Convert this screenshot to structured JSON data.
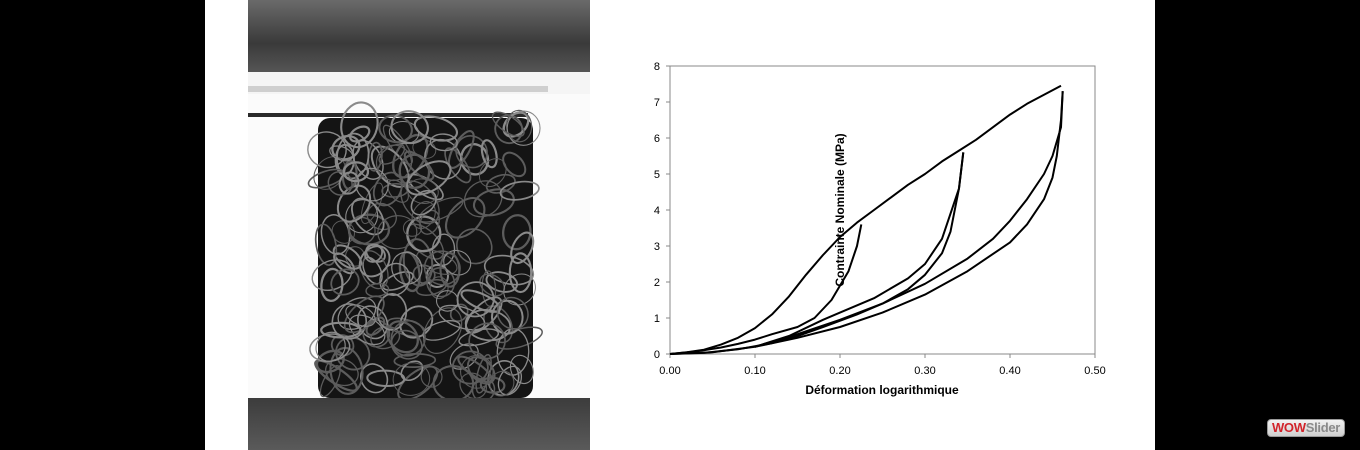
{
  "badge": {
    "part1": "WOW",
    "part2": "Slider"
  },
  "chart_data": {
    "type": "line",
    "xlabel": "Déformation logarithmique",
    "ylabel": "Contrainte Nominale (MPa)",
    "xlim": [
      0,
      0.5
    ],
    "ylim": [
      0,
      8
    ],
    "x_ticks": [
      "0.00",
      "0.10",
      "0.20",
      "0.30",
      "0.40",
      "0.50"
    ],
    "y_ticks": [
      "0",
      "1",
      "2",
      "3",
      "4",
      "5",
      "6",
      "7",
      "8"
    ],
    "grid": false,
    "legend": "none",
    "line_color": "#000000",
    "series": [
      {
        "x": [
          0,
          0.02,
          0.04,
          0.06,
          0.08,
          0.1,
          0.12,
          0.14,
          0.16,
          0.18,
          0.2,
          0.22,
          0.24,
          0.26,
          0.28,
          0.3,
          0.32,
          0.34,
          0.36,
          0.38,
          0.4,
          0.42,
          0.44,
          0.46
        ],
        "y": [
          0,
          0.05,
          0.12,
          0.26,
          0.45,
          0.72,
          1.1,
          1.6,
          2.2,
          2.75,
          3.25,
          3.65,
          4.0,
          4.35,
          4.7,
          5.0,
          5.35,
          5.65,
          5.95,
          6.3,
          6.65,
          6.95,
          7.2,
          7.45
        ]
      },
      {
        "x": [
          0.225,
          0.22,
          0.21,
          0.19,
          0.17,
          0.15,
          0.12,
          0.1,
          0.08,
          0.06,
          0.03,
          0
        ],
        "y": [
          3.6,
          3.0,
          2.3,
          1.5,
          1.0,
          0.75,
          0.55,
          0.4,
          0.28,
          0.18,
          0.07,
          0
        ]
      },
      {
        "x": [
          0.1,
          0.14,
          0.18,
          0.2,
          0.24,
          0.28,
          0.3,
          0.32,
          0.34,
          0.345
        ],
        "y": [
          0.2,
          0.5,
          0.95,
          1.15,
          1.55,
          2.1,
          2.5,
          3.2,
          4.6,
          5.6
        ]
      },
      {
        "x": [
          0.345,
          0.34,
          0.33,
          0.32,
          0.3,
          0.28,
          0.25,
          0.22,
          0.18,
          0.15,
          0.12,
          0.08,
          0.04,
          0
        ],
        "y": [
          5.6,
          4.6,
          3.4,
          2.8,
          2.2,
          1.8,
          1.4,
          1.1,
          0.75,
          0.5,
          0.3,
          0.13,
          0.03,
          0
        ]
      },
      {
        "x": [
          0.1,
          0.15,
          0.2,
          0.25,
          0.3,
          0.35,
          0.38,
          0.4,
          0.42,
          0.44,
          0.45,
          0.46,
          0.462
        ],
        "y": [
          0.2,
          0.55,
          0.95,
          1.4,
          1.95,
          2.65,
          3.2,
          3.7,
          4.3,
          5.0,
          5.5,
          6.3,
          7.3
        ]
      },
      {
        "x": [
          0.462,
          0.46,
          0.455,
          0.45,
          0.44,
          0.42,
          0.4,
          0.35,
          0.3,
          0.25,
          0.2,
          0.15,
          0.1,
          0.05,
          0
        ],
        "y": [
          7.3,
          6.5,
          5.5,
          4.9,
          4.3,
          3.6,
          3.1,
          2.3,
          1.65,
          1.15,
          0.75,
          0.45,
          0.2,
          0.05,
          0
        ]
      }
    ]
  }
}
